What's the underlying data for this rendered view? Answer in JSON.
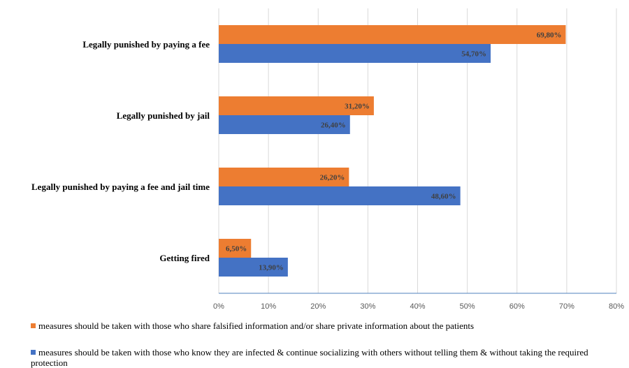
{
  "chart_data": {
    "type": "bar",
    "orientation": "horizontal",
    "categories": [
      "Legally punished by paying a fee",
      "Legally punished by jail",
      "Legally punished by paying a fee and jail time",
      "Getting fired"
    ],
    "series": [
      {
        "name": "measures should be taken with those who share falsified information and/or share private information about the patients",
        "color": "#ED7D31",
        "values": [
          69.8,
          31.2,
          26.2,
          6.5
        ],
        "labels": [
          "69,80%",
          "31,20%",
          "26,20%",
          "6,50%"
        ]
      },
      {
        "name": "measures should be taken with those who know they are infected & continue socializing with others without telling them & without taking the required protection",
        "color": "#4472C4",
        "values": [
          54.7,
          26.4,
          48.6,
          13.9
        ],
        "labels": [
          "54,70%",
          "26,40%",
          "48,60%",
          "13,90%"
        ]
      }
    ],
    "xlim": [
      0,
      80
    ],
    "xticks": [
      "0%",
      "10%",
      "20%",
      "30%",
      "40%",
      "50%",
      "60%",
      "70%",
      "80%"
    ],
    "grid": true,
    "legend_position": "bottom"
  }
}
